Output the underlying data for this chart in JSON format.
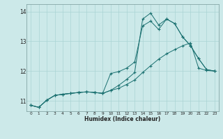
{
  "xlabel": "Humidex (Indice chaleur)",
  "bg_color": "#cce9e9",
  "grid_color": "#aad4d4",
  "line_color": "#1a7070",
  "xlim": [
    -0.5,
    23.5
  ],
  "ylim": [
    10.65,
    14.25
  ],
  "yticks": [
    11,
    12,
    13,
    14
  ],
  "xticks": [
    0,
    1,
    2,
    3,
    4,
    5,
    6,
    7,
    8,
    9,
    10,
    11,
    12,
    13,
    14,
    15,
    16,
    17,
    18,
    19,
    20,
    21,
    22,
    23
  ],
  "series1_x": [
    0,
    1,
    2,
    3,
    4,
    5,
    6,
    7,
    8,
    9,
    10,
    11,
    12,
    13,
    14,
    15,
    16,
    17,
    18,
    19,
    20,
    21,
    22,
    23
  ],
  "series1_y": [
    10.85,
    10.78,
    11.02,
    11.18,
    11.22,
    11.25,
    11.28,
    11.3,
    11.28,
    11.25,
    11.92,
    11.98,
    12.1,
    12.3,
    13.52,
    13.68,
    13.4,
    13.75,
    13.6,
    13.15,
    12.85,
    12.42,
    12.05,
    12.0
  ],
  "series2_x": [
    0,
    1,
    2,
    3,
    4,
    5,
    6,
    7,
    8,
    9,
    10,
    11,
    12,
    13,
    14,
    15,
    16,
    17,
    18,
    19,
    20,
    21,
    22,
    23
  ],
  "series2_y": [
    10.85,
    10.78,
    11.02,
    11.18,
    11.22,
    11.25,
    11.28,
    11.3,
    11.28,
    11.25,
    11.35,
    11.52,
    11.72,
    11.95,
    13.75,
    13.95,
    13.55,
    13.75,
    13.6,
    13.15,
    12.85,
    12.42,
    12.05,
    12.0
  ],
  "series3_x": [
    0,
    1,
    2,
    3,
    4,
    5,
    6,
    7,
    8,
    9,
    10,
    11,
    12,
    13,
    14,
    15,
    16,
    17,
    18,
    19,
    20,
    21,
    22,
    23
  ],
  "series3_y": [
    10.85,
    10.78,
    11.02,
    11.18,
    11.22,
    11.25,
    11.28,
    11.3,
    11.28,
    11.25,
    11.35,
    11.42,
    11.55,
    11.7,
    11.95,
    12.18,
    12.4,
    12.58,
    12.72,
    12.85,
    12.95,
    12.1,
    12.02,
    12.0
  ]
}
